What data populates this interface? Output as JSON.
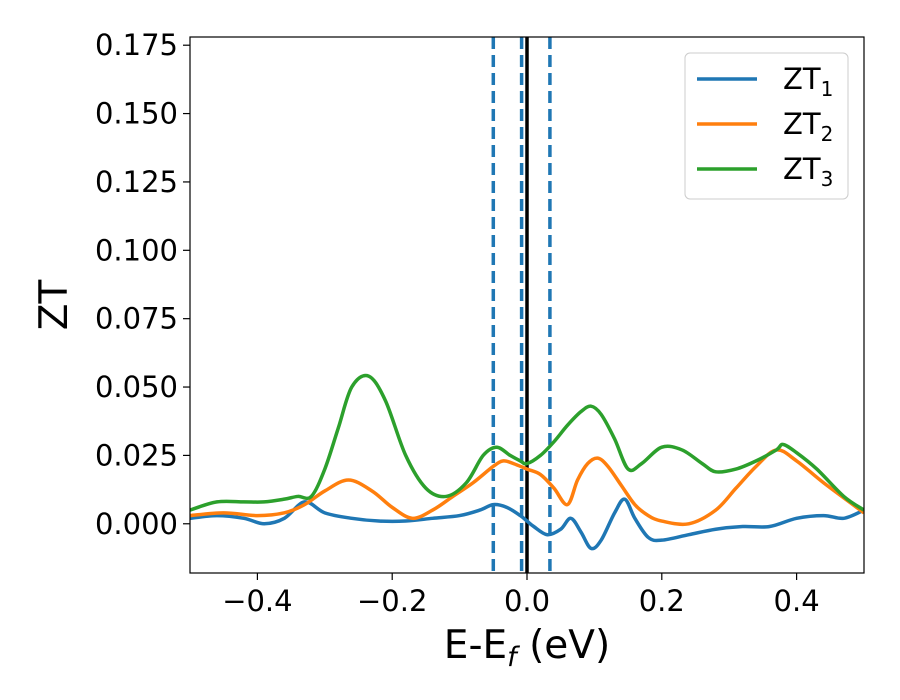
{
  "chart_data": {
    "type": "line",
    "xlabel": "E-E",
    "xlabel_subscript": "f",
    "xlabel_suffix": " (eV)",
    "ylabel": "ZT",
    "xlim": [
      -0.5,
      0.5
    ],
    "ylim": [
      -0.018,
      0.178
    ],
    "xticks": [
      -0.4,
      -0.2,
      0.0,
      0.2,
      0.4
    ],
    "xtick_labels": [
      "−0.4",
      "−0.2",
      "0.0",
      "0.2",
      "0.4"
    ],
    "yticks": [
      0.0,
      0.025,
      0.05,
      0.075,
      0.1,
      0.125,
      0.15,
      0.175
    ],
    "ytick_labels": [
      "0.000",
      "0.025",
      "0.050",
      "0.075",
      "0.100",
      "0.125",
      "0.150",
      "0.175"
    ],
    "grid": false,
    "legend_position": "top-right",
    "vertical_lines": [
      {
        "x": -0.05,
        "style": "dashed",
        "color": "#1f77b4"
      },
      {
        "x": -0.008,
        "style": "dashed",
        "color": "#1f77b4"
      },
      {
        "x": 0.034,
        "style": "dashed",
        "color": "#1f77b4"
      },
      {
        "x": 0.0,
        "style": "solid",
        "color": "#000000"
      }
    ],
    "series": [
      {
        "name": "ZT",
        "subscript": "1",
        "color": "#1f77b4",
        "x": [
          -0.5,
          -0.46,
          -0.42,
          -0.39,
          -0.36,
          -0.33,
          -0.3,
          -0.26,
          -0.22,
          -0.18,
          -0.14,
          -0.1,
          -0.07,
          -0.05,
          -0.03,
          -0.01,
          0.0,
          0.01,
          0.03,
          0.05,
          0.065,
          0.08,
          0.095,
          0.11,
          0.13,
          0.145,
          0.16,
          0.18,
          0.2,
          0.24,
          0.28,
          0.32,
          0.36,
          0.4,
          0.44,
          0.47,
          0.5
        ],
        "values": [
          0.002,
          0.003,
          0.002,
          0.0,
          0.002,
          0.008,
          0.004,
          0.002,
          0.001,
          0.001,
          0.002,
          0.003,
          0.005,
          0.007,
          0.006,
          0.003,
          0.001,
          -0.001,
          -0.004,
          -0.002,
          0.002,
          -0.003,
          -0.009,
          -0.006,
          0.004,
          0.009,
          0.002,
          -0.005,
          -0.006,
          -0.004,
          -0.002,
          -0.001,
          -0.001,
          0.002,
          0.003,
          0.002,
          0.005
        ]
      },
      {
        "name": "ZT",
        "subscript": "2",
        "color": "#ff7f0e",
        "x": [
          -0.5,
          -0.45,
          -0.4,
          -0.36,
          -0.33,
          -0.3,
          -0.265,
          -0.23,
          -0.2,
          -0.17,
          -0.14,
          -0.11,
          -0.08,
          -0.05,
          -0.035,
          -0.02,
          0.0,
          0.02,
          0.04,
          0.06,
          0.075,
          0.09,
          0.105,
          0.12,
          0.14,
          0.16,
          0.18,
          0.2,
          0.24,
          0.28,
          0.31,
          0.34,
          0.37,
          0.4,
          0.44,
          0.5
        ],
        "values": [
          0.003,
          0.004,
          0.003,
          0.004,
          0.007,
          0.012,
          0.016,
          0.012,
          0.006,
          0.002,
          0.005,
          0.01,
          0.015,
          0.021,
          0.023,
          0.022,
          0.02,
          0.018,
          0.013,
          0.007,
          0.016,
          0.022,
          0.024,
          0.021,
          0.014,
          0.007,
          0.003,
          0.001,
          0.0,
          0.005,
          0.013,
          0.021,
          0.027,
          0.023,
          0.015,
          0.004
        ]
      },
      {
        "name": "ZT",
        "subscript": "3",
        "color": "#2ca02c",
        "x": [
          -0.5,
          -0.46,
          -0.42,
          -0.39,
          -0.36,
          -0.34,
          -0.32,
          -0.3,
          -0.28,
          -0.26,
          -0.235,
          -0.21,
          -0.18,
          -0.15,
          -0.12,
          -0.09,
          -0.065,
          -0.045,
          -0.025,
          -0.01,
          0.0,
          0.02,
          0.04,
          0.06,
          0.08,
          0.095,
          0.11,
          0.13,
          0.15,
          0.17,
          0.2,
          0.23,
          0.26,
          0.28,
          0.31,
          0.34,
          0.37,
          0.38,
          0.4,
          0.43,
          0.47,
          0.5
        ],
        "values": [
          0.005,
          0.008,
          0.008,
          0.008,
          0.009,
          0.01,
          0.01,
          0.02,
          0.035,
          0.05,
          0.054,
          0.045,
          0.025,
          0.013,
          0.01,
          0.015,
          0.025,
          0.028,
          0.025,
          0.023,
          0.022,
          0.025,
          0.03,
          0.036,
          0.041,
          0.043,
          0.04,
          0.031,
          0.02,
          0.022,
          0.028,
          0.027,
          0.022,
          0.019,
          0.02,
          0.023,
          0.027,
          0.029,
          0.026,
          0.02,
          0.01,
          0.005
        ]
      }
    ]
  }
}
